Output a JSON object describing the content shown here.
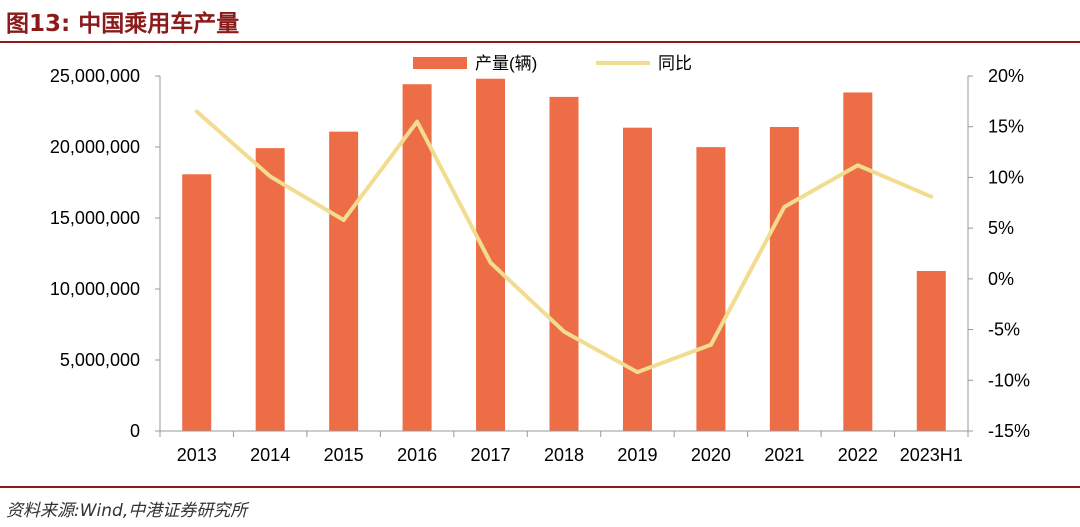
{
  "figure": {
    "label": "图13:",
    "title": "中国乘用车产量",
    "source": "资料来源:Wind,中港证券研究所"
  },
  "colors": {
    "title": "#8B1A1A",
    "bar": "#ED6D46",
    "line": "#F2DC8F",
    "axis": "#999999",
    "text": "#000000"
  },
  "chart_data": {
    "type": "bar",
    "categories": [
      "2013",
      "2014",
      "2015",
      "2016",
      "2017",
      "2018",
      "2019",
      "2020",
      "2021",
      "2022",
      "2023H1"
    ],
    "series": [
      {
        "name": "产量(辆)",
        "type": "bar",
        "axis": "left",
        "values": [
          18080000,
          19920000,
          21080000,
          24420000,
          24810000,
          23530000,
          21360000,
          19990000,
          21410000,
          23840000,
          11270000
        ]
      },
      {
        "name": "同比",
        "type": "line",
        "axis": "right",
        "values": [
          16.5,
          10.1,
          5.8,
          15.5,
          1.6,
          -5.2,
          -9.2,
          -6.5,
          7.1,
          11.2,
          8.1
        ]
      }
    ],
    "y_left": {
      "min": 0,
      "max": 25000000,
      "ticks": [
        0,
        5000000,
        10000000,
        15000000,
        20000000,
        25000000
      ],
      "tick_labels": [
        "0",
        "5,000,000",
        "10,000,000",
        "15,000,000",
        "20,000,000",
        "25,000,000"
      ]
    },
    "y_right": {
      "min": -15,
      "max": 20,
      "ticks": [
        -15,
        -10,
        -5,
        0,
        5,
        10,
        15,
        20
      ],
      "tick_labels": [
        "-15%",
        "-10%",
        "-5%",
        "0%",
        "5%",
        "10%",
        "15%",
        "20%"
      ]
    },
    "legend_position": "top-center",
    "grid": false
  }
}
